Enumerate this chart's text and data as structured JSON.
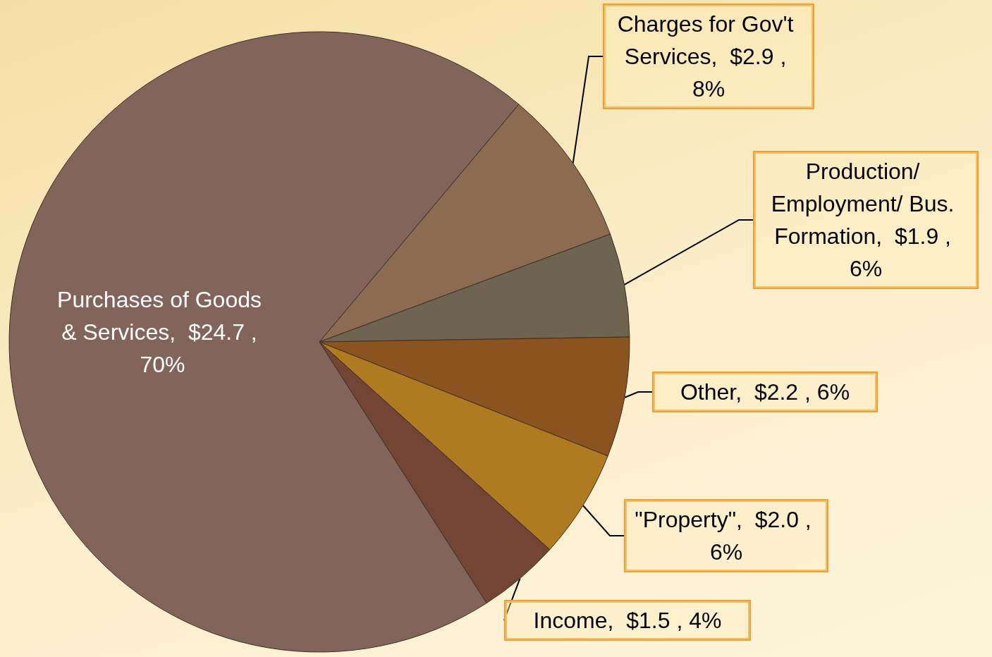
{
  "chart_data": {
    "type": "pie",
    "categories": [
      "Charges for Gov't Services",
      "Production/ Employment/ Bus. Formation",
      "Other",
      "\"Property\"",
      "Income",
      "Purchases of Goods & Services"
    ],
    "values": [
      2.9,
      1.9,
      2.2,
      2.0,
      1.5,
      24.7
    ],
    "value_labels": [
      "$2.9 , 8%",
      "$1.9 , 6%",
      "$2.2 , 6%",
      "$2.0 , 6%",
      "$1.5 , 4%",
      "$24.7 , 70%"
    ],
    "colors": [
      "#8c6b50",
      "#6e6450",
      "#8a5320",
      "#b07a20",
      "#734535",
      "#82645a"
    ]
  }
}
